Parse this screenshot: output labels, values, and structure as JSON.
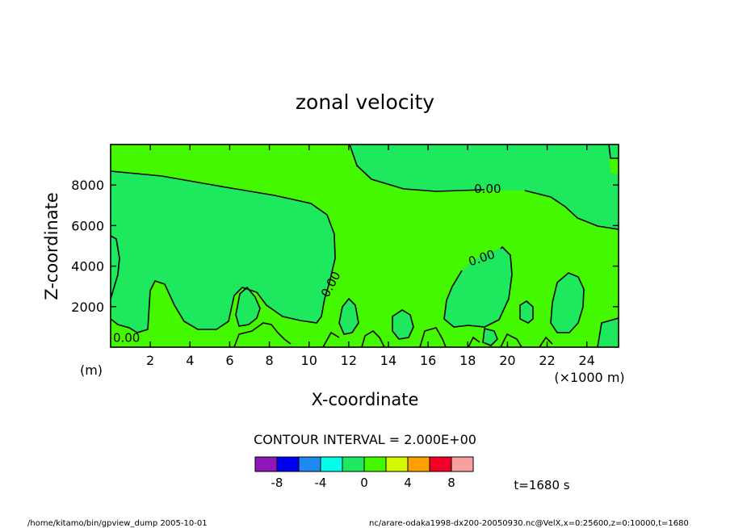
{
  "chart_data": {
    "type": "contour",
    "title": "zonal velocity",
    "xlabel": "X-coordinate",
    "ylabel": "Z-coordinate",
    "x_unit_label": "(×1000 m)",
    "y_unit_label": "(m)",
    "xlim": [
      0,
      25.6
    ],
    "ylim": [
      0,
      10000
    ],
    "x_ticks": [
      2,
      4,
      6,
      8,
      10,
      12,
      14,
      16,
      18,
      20,
      22,
      24
    ],
    "y_ticks": [
      2000,
      4000,
      6000,
      8000
    ],
    "contour_labels": [
      {
        "text": "0.00",
        "x": 19.0,
        "y": 7800
      },
      {
        "text": "0.00",
        "x": 18.7,
        "y": 4400
      },
      {
        "text": "0.00",
        "x": 11.1,
        "y": 3100
      },
      {
        "text": "0.00",
        "x": 0.8,
        "y": 450
      }
    ],
    "contour_interval_text": "CONTOUR INTERVAL = 2.000E+00",
    "colorbar": {
      "colors": [
        "#8f16b8",
        "#0000f0",
        "#1e8af0",
        "#00ffe8",
        "#1ee85e",
        "#44f800",
        "#d4f800",
        "#ffa000",
        "#f20028",
        "#f7a0a0"
      ],
      "tick_labels": [
        "-8",
        "-4",
        "0",
        "4",
        "8"
      ]
    },
    "time_label": "t=1680 s",
    "fill_colors": {
      "near_zero_negative": "#1ee85e",
      "near_zero_positive": "#44f800"
    }
  },
  "footer": {
    "left": "/home/kitamo/bin/gpview_dump  2005-10-01",
    "right": "nc/arare-odaka1998-dx200-20050930.nc@VelX,x=0:25600,z=0:10000,t=1680"
  }
}
